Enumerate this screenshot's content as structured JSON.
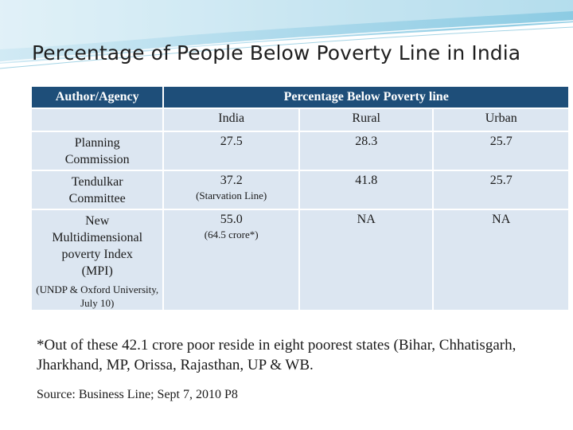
{
  "slide": {
    "title": "Percentage of People Below Poverty Line in India"
  },
  "table": {
    "header": {
      "agency": "Author/Agency",
      "percentage": "Percentage Below Poverty line"
    },
    "subheader": {
      "india": "India",
      "rural": "Rural",
      "urban": "Urban"
    },
    "rows": [
      {
        "agency_line1": "Planning",
        "agency_line2": "Commission",
        "india": "27.5",
        "rural": "28.3",
        "urban": "25.7"
      },
      {
        "agency_line1": "Tendulkar",
        "agency_line2": "Committee",
        "india": "37.2",
        "india_note": "(Starvation Line)",
        "rural": "41.8",
        "urban": "25.7"
      },
      {
        "agency_line1": "New",
        "agency_line2": "Multidimensional",
        "agency_line3": "poverty Index",
        "agency_line4": "(MPI)",
        "agency_note": "(UNDP & Oxford University, July 10)",
        "india": "55.0",
        "india_note": "(64.5 crore*)",
        "rural": "NA",
        "urban": "NA"
      }
    ]
  },
  "footnote": "*Out of these 42.1 crore poor reside in eight poorest states (Bihar, Chhatisgarh, Jharkhand, MP, Orissa, Rajasthan, UP & WB.",
  "source": "Source: Business Line; Sept 7, 2010 P8"
}
